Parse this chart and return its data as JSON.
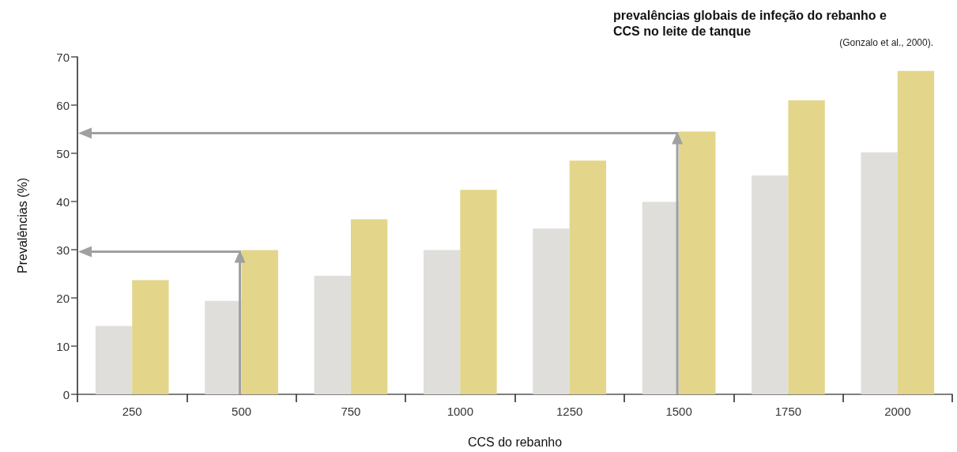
{
  "chart_data": {
    "type": "bar",
    "title": "prevalências globais de infeção do rebanho e CCS no leite de tanque",
    "annotations": [
      "(Gonzalo et al., 2000)."
    ],
    "xlabel": "CCS do rebanho",
    "ylabel": "Prevalências (%)",
    "categories": [
      "250",
      "500",
      "750",
      "1000",
      "1250",
      "1500",
      "1750",
      "2000"
    ],
    "series": [
      {
        "color": "#dfdedb",
        "values": [
          14.2,
          19.4,
          24.6,
          29.9,
          34.4,
          39.9,
          45.4,
          50.2
        ]
      },
      {
        "color": "#e3d68a",
        "values": [
          23.7,
          29.9,
          36.3,
          42.4,
          48.5,
          54.5,
          61.0,
          67.1
        ]
      }
    ],
    "ylim": [
      0,
      70
    ],
    "yticks": [
      0,
      10,
      20,
      30,
      40,
      50,
      60,
      70
    ],
    "grid": false
  }
}
